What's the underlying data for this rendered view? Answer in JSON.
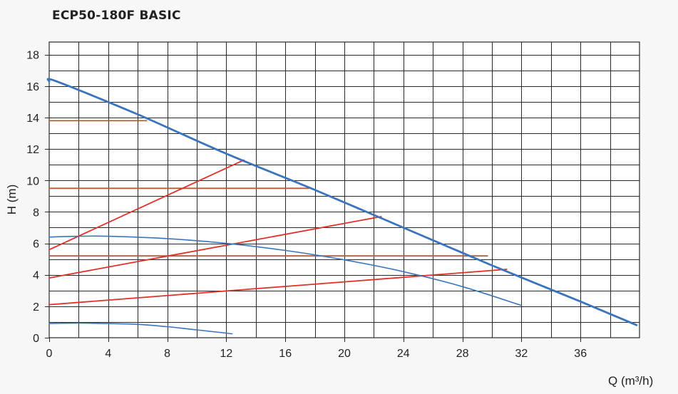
{
  "title": "ECP50-180F BASIC",
  "chart_data": {
    "type": "line",
    "title": "ECP50-180F BASIC",
    "xlabel": "Q (m³/h)",
    "ylabel": "H (m)",
    "xlim": [
      0,
      40
    ],
    "ylim": [
      0,
      18.8
    ],
    "x_ticks": [
      0,
      4,
      8,
      12,
      16,
      20,
      24,
      28,
      32,
      36
    ],
    "y_ticks": [
      0,
      2,
      4,
      6,
      8,
      10,
      12,
      14,
      16,
      18
    ],
    "grid": true,
    "minor_grid_x_step": 2,
    "minor_grid_y_step": 1,
    "colors": {
      "pump_curve": "#3a74bd",
      "system_curve": "#e03028",
      "constant_head": "#b85a34",
      "grid": "#2a2a2a"
    },
    "series": [
      {
        "kind": "pump_curve",
        "points": [
          [
            0,
            16.3
          ],
          [
            0.5,
            16.3
          ],
          [
            6,
            14.2
          ],
          [
            12,
            11.7
          ],
          [
            18,
            9.4
          ],
          [
            24,
            7.0
          ],
          [
            30,
            4.6
          ],
          [
            36,
            2.3
          ],
          [
            39.8,
            0.8
          ]
        ]
      },
      {
        "kind": "pump_curve",
        "points": [
          [
            0,
            6.4
          ],
          [
            2,
            6.45
          ],
          [
            4,
            6.45
          ],
          [
            8,
            6.3
          ],
          [
            12,
            6.0
          ],
          [
            16,
            5.55
          ],
          [
            20,
            4.95
          ],
          [
            24,
            4.2
          ],
          [
            28,
            3.25
          ],
          [
            32,
            2.05
          ]
        ]
      },
      {
        "kind": "pump_curve",
        "points": [
          [
            0,
            0.9
          ],
          [
            2,
            0.93
          ],
          [
            4,
            0.9
          ],
          [
            6,
            0.85
          ],
          [
            8,
            0.7
          ],
          [
            10,
            0.5
          ],
          [
            12.4,
            0.25
          ]
        ]
      },
      {
        "kind": "system_curve",
        "points": [
          [
            0,
            5.6
          ],
          [
            13.2,
            11.3
          ]
        ]
      },
      {
        "kind": "system_curve",
        "points": [
          [
            0,
            3.8
          ],
          [
            22.5,
            7.7
          ]
        ]
      },
      {
        "kind": "system_curve",
        "points": [
          [
            0,
            2.1
          ],
          [
            31,
            4.35
          ]
        ]
      },
      {
        "kind": "constant_head",
        "points": [
          [
            0,
            13.8
          ],
          [
            6.6,
            13.8
          ]
        ]
      },
      {
        "kind": "constant_head",
        "points": [
          [
            0,
            9.5
          ],
          [
            17.6,
            9.5
          ]
        ]
      },
      {
        "kind": "constant_head",
        "points": [
          [
            0,
            5.2
          ],
          [
            29.7,
            5.2
          ]
        ]
      }
    ]
  }
}
